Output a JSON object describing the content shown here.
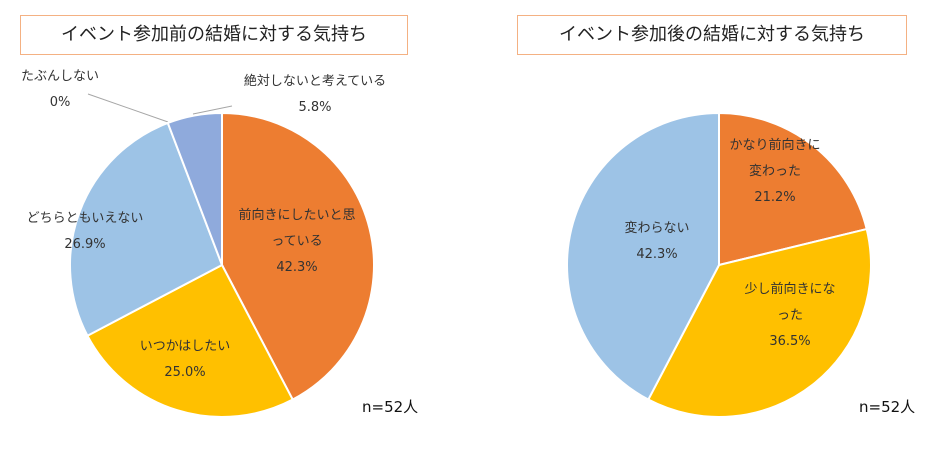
{
  "chart_data": [
    {
      "type": "pie",
      "title": "イベント参加前の結婚に対する気持ち",
      "categories": [
        "前向きにしたいと思っている",
        "いつかはしたい",
        "どちらともいえない",
        "絶対しないと考えている",
        "たぶんしない"
      ],
      "values": [
        42.3,
        25.0,
        26.9,
        5.8,
        0
      ],
      "value_labels": [
        "42.3%",
        "25.0%",
        "26.9%",
        "5.8%",
        "0%"
      ],
      "colors": [
        "#ed7d31",
        "#ffc000",
        "#9dc3e6",
        "#8faadc",
        "#a5a5a5"
      ],
      "annotation": "n=52人"
    },
    {
      "type": "pie",
      "title": "イベント参加後の結婚に対する気持ち",
      "categories": [
        "かなり前向きに変わった",
        "少し前向きになった",
        "変わらない"
      ],
      "values": [
        21.2,
        36.5,
        42.3
      ],
      "value_labels": [
        "21.2%",
        "36.5%",
        "42.3%"
      ],
      "colors": [
        "#ed7d31",
        "#ffc000",
        "#9dc3e6"
      ],
      "annotation": "n=52人"
    }
  ]
}
